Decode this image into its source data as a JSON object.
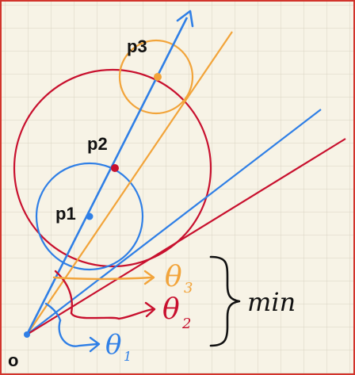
{
  "labels": {
    "origin": "o",
    "p1": "p1",
    "p2": "p2",
    "p3": "p3",
    "theta3": "θ",
    "theta3_sub": "3",
    "theta2": "θ",
    "theta2_sub": "2",
    "theta1": "θ",
    "theta1_sub": "1",
    "min": "min"
  },
  "colors": {
    "paper": "#f7f3e6",
    "grid": "#d8d3c2",
    "border": "#d2342c",
    "blue": "#2f7fe6",
    "orange": "#f2a43a",
    "red": "#c8102e",
    "ink": "#111111"
  }
}
